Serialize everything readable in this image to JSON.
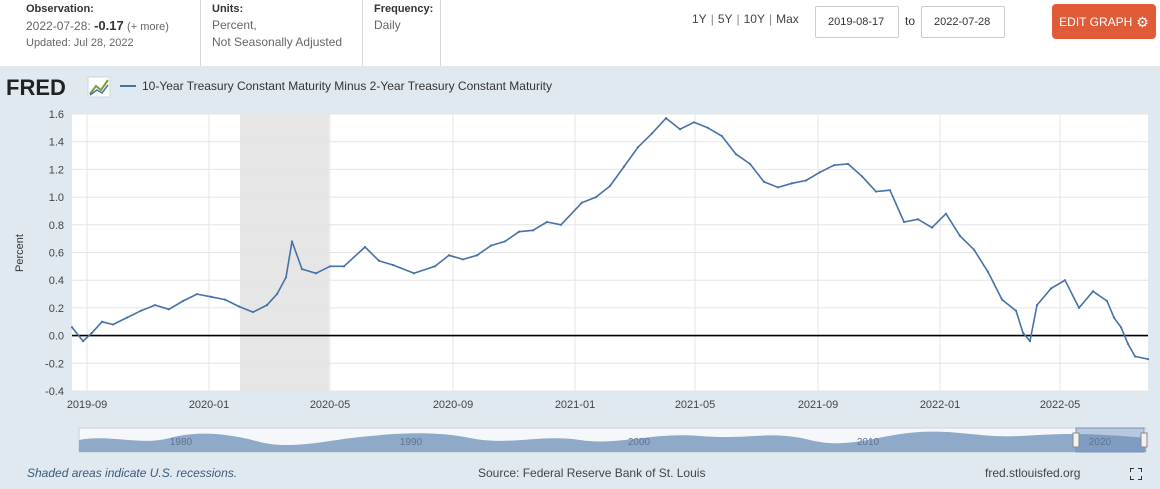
{
  "observation": {
    "label": "Observation:",
    "date": "2022-07-28:",
    "value": "-0.17",
    "more": "(+ more)",
    "updated": "Updated: Jul 28, 2022"
  },
  "units": {
    "label": "Units:",
    "line1": "Percent,",
    "line2": "Not Seasonally Adjusted"
  },
  "frequency": {
    "label": "Frequency:",
    "value": "Daily"
  },
  "ranges": [
    "1Y",
    "5Y",
    "10Y",
    "Max"
  ],
  "date_from": "2019-08-17",
  "date_to_label": "to",
  "date_to": "2022-07-28",
  "edit_button": "EDIT GRAPH",
  "brand": "FRED",
  "footer": {
    "recession_note": "Shaded areas indicate U.S. recessions.",
    "source": "Source: Federal Reserve Bank of St. Louis",
    "site": "fred.stlouisfed.org"
  },
  "navigator_labels": [
    "1980",
    "1990",
    "2000",
    "2010",
    "2020"
  ],
  "colors": {
    "series": "#4572a7",
    "recession": "#e6e6e6",
    "edit_button": "#e05b37",
    "background": "#e1e9f0"
  },
  "chart_data": {
    "type": "line",
    "title": "10-Year Treasury Constant Maturity Minus 2-Year Treasury Constant Maturity",
    "xlabel": "",
    "ylabel": "Percent",
    "ylim": [
      -0.4,
      1.6
    ],
    "yticks": [
      "1.6",
      "1.4",
      "1.2",
      "1.0",
      "0.8",
      "0.6",
      "0.4",
      "0.2",
      "0.0",
      "-0.2",
      "-0.4"
    ],
    "ytick_values": [
      1.6,
      1.4,
      1.2,
      1.0,
      0.8,
      0.6,
      0.4,
      0.2,
      0.0,
      -0.2,
      -0.4
    ],
    "xlim": [
      "2019-08-17",
      "2022-07-28"
    ],
    "xticks": [
      "2019-09",
      "2020-01",
      "2020-05",
      "2020-09",
      "2021-01",
      "2021-05",
      "2021-09",
      "2022-01",
      "2022-05"
    ],
    "xtick_dates": [
      "2019-09-01",
      "2020-01-01",
      "2020-05-01",
      "2020-09-01",
      "2021-01-01",
      "2021-05-01",
      "2021-09-01",
      "2022-01-01",
      "2022-05-01"
    ],
    "recession": {
      "start": "2020-02-01",
      "end": "2020-04-30"
    },
    "zero_line": 0,
    "series": [
      {
        "name": "10-Year Treasury Constant Maturity Minus 2-Year Treasury Constant Maturity",
        "x": [
          "2019-08-17",
          "2019-08-28",
          "2019-09-06",
          "2019-09-16",
          "2019-09-27",
          "2019-10-11",
          "2019-10-25",
          "2019-11-08",
          "2019-11-22",
          "2019-12-06",
          "2019-12-20",
          "2020-01-03",
          "2020-01-17",
          "2020-01-31",
          "2020-02-14",
          "2020-02-28",
          "2020-03-09",
          "2020-03-18",
          "2020-03-24",
          "2020-04-03",
          "2020-04-17",
          "2020-05-01",
          "2020-05-15",
          "2020-06-05",
          "2020-06-19",
          "2020-07-03",
          "2020-07-24",
          "2020-08-14",
          "2020-08-28",
          "2020-09-11",
          "2020-09-25",
          "2020-10-09",
          "2020-10-23",
          "2020-11-06",
          "2020-11-20",
          "2020-12-04",
          "2020-12-18",
          "2021-01-08",
          "2021-01-22",
          "2021-02-05",
          "2021-02-19",
          "2021-03-05",
          "2021-03-19",
          "2021-04-02",
          "2021-04-16",
          "2021-04-30",
          "2021-05-14",
          "2021-05-28",
          "2021-06-11",
          "2021-06-25",
          "2021-07-09",
          "2021-07-23",
          "2021-08-06",
          "2021-08-20",
          "2021-09-03",
          "2021-09-17",
          "2021-10-01",
          "2021-10-15",
          "2021-10-29",
          "2021-11-12",
          "2021-11-26",
          "2021-12-10",
          "2021-12-24",
          "2022-01-07",
          "2022-01-21",
          "2022-02-04",
          "2022-02-18",
          "2022-03-04",
          "2022-03-18",
          "2022-03-25",
          "2022-04-01",
          "2022-04-08",
          "2022-04-22",
          "2022-05-06",
          "2022-05-20",
          "2022-06-03",
          "2022-06-17",
          "2022-06-24",
          "2022-07-01",
          "2022-07-08",
          "2022-07-15",
          "2022-07-28"
        ],
        "values": [
          0.06,
          -0.04,
          0.02,
          0.1,
          0.08,
          0.13,
          0.18,
          0.22,
          0.19,
          0.25,
          0.3,
          0.28,
          0.26,
          0.21,
          0.17,
          0.22,
          0.3,
          0.42,
          0.68,
          0.48,
          0.45,
          0.5,
          0.5,
          0.64,
          0.54,
          0.51,
          0.45,
          0.5,
          0.58,
          0.55,
          0.58,
          0.65,
          0.68,
          0.75,
          0.76,
          0.82,
          0.8,
          0.96,
          1.0,
          1.08,
          1.22,
          1.36,
          1.46,
          1.57,
          1.49,
          1.54,
          1.5,
          1.44,
          1.31,
          1.24,
          1.11,
          1.07,
          1.1,
          1.12,
          1.18,
          1.23,
          1.24,
          1.15,
          1.04,
          1.05,
          0.82,
          0.84,
          0.78,
          0.88,
          0.72,
          0.62,
          0.46,
          0.26,
          0.18,
          0.02,
          -0.04,
          0.22,
          0.34,
          0.4,
          0.2,
          0.32,
          0.25,
          0.13,
          0.06,
          -0.06,
          -0.15,
          -0.17
        ]
      }
    ]
  }
}
